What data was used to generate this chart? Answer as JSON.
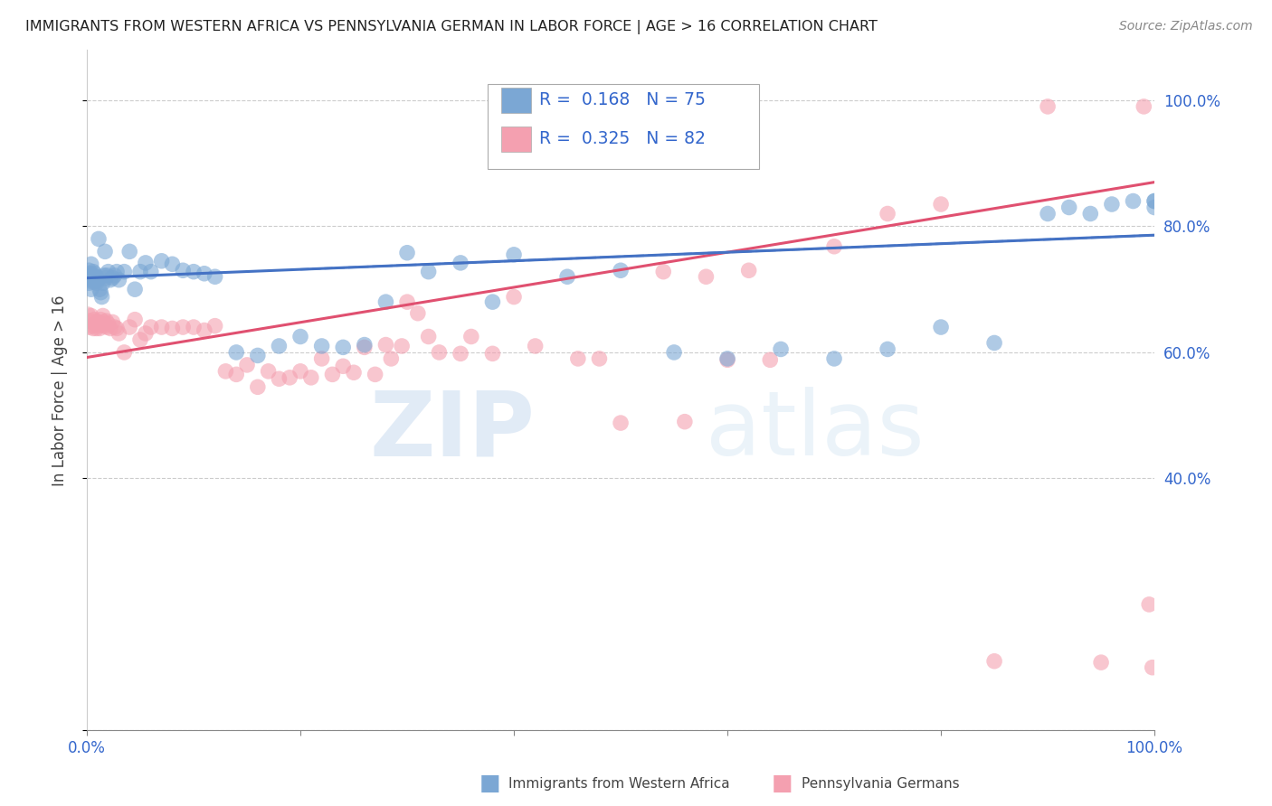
{
  "title": "IMMIGRANTS FROM WESTERN AFRICA VS PENNSYLVANIA GERMAN IN LABOR FORCE | AGE > 16 CORRELATION CHART",
  "source": "Source: ZipAtlas.com",
  "ylabel": "In Labor Force | Age > 16",
  "blue_color": "#7BA7D4",
  "pink_color": "#F4A0B0",
  "blue_line_color": "#4472C4",
  "pink_line_color": "#E05070",
  "blue_R": 0.168,
  "blue_N": 75,
  "pink_R": 0.325,
  "pink_N": 82,
  "blue_trend_intercept": 0.718,
  "blue_trend_slope": 0.068,
  "pink_trend_intercept": 0.592,
  "pink_trend_slope": 0.278,
  "xlim": [
    0.0,
    1.0
  ],
  "ylim": [
    0.0,
    1.08
  ],
  "yticks": [
    0.0,
    0.4,
    0.6,
    0.8,
    1.0
  ],
  "ytick_labels_right": [
    "",
    "40.0%",
    "60.0%",
    "80.0%",
    "100.0%"
  ],
  "xtick_labels": [
    "0.0%",
    "",
    "",
    "",
    "",
    "100.0%"
  ],
  "xticks": [
    0.0,
    0.2,
    0.4,
    0.6,
    0.8,
    1.0
  ],
  "watermark": "ZIPatlas",
  "legend_label1": "R =  0.168   N = 75",
  "legend_label2": "R =  0.325   N = 82",
  "blue_x": [
    0.001,
    0.002,
    0.002,
    0.003,
    0.003,
    0.004,
    0.004,
    0.005,
    0.005,
    0.006,
    0.006,
    0.007,
    0.007,
    0.008,
    0.008,
    0.009,
    0.009,
    0.01,
    0.011,
    0.012,
    0.013,
    0.014,
    0.015,
    0.016,
    0.017,
    0.018,
    0.019,
    0.02,
    0.022,
    0.024,
    0.026,
    0.028,
    0.03,
    0.035,
    0.04,
    0.045,
    0.05,
    0.055,
    0.06,
    0.07,
    0.08,
    0.09,
    0.1,
    0.11,
    0.12,
    0.14,
    0.16,
    0.18,
    0.2,
    0.22,
    0.24,
    0.26,
    0.28,
    0.3,
    0.32,
    0.35,
    0.38,
    0.4,
    0.45,
    0.5,
    0.55,
    0.6,
    0.65,
    0.7,
    0.75,
    0.8,
    0.85,
    0.9,
    0.92,
    0.94,
    0.96,
    0.98,
    1.0,
    1.0,
    1.0
  ],
  "blue_y": [
    0.72,
    0.73,
    0.71,
    0.715,
    0.725,
    0.7,
    0.74,
    0.718,
    0.712,
    0.722,
    0.728,
    0.715,
    0.725,
    0.718,
    0.712,
    0.71,
    0.72,
    0.715,
    0.78,
    0.7,
    0.695,
    0.688,
    0.71,
    0.722,
    0.76,
    0.718,
    0.722,
    0.728,
    0.715,
    0.718,
    0.722,
    0.728,
    0.715,
    0.728,
    0.76,
    0.7,
    0.728,
    0.742,
    0.728,
    0.745,
    0.74,
    0.73,
    0.728,
    0.725,
    0.72,
    0.6,
    0.595,
    0.61,
    0.625,
    0.61,
    0.608,
    0.612,
    0.68,
    0.758,
    0.728,
    0.742,
    0.68,
    0.755,
    0.72,
    0.73,
    0.6,
    0.59,
    0.605,
    0.59,
    0.605,
    0.64,
    0.615,
    0.82,
    0.83,
    0.82,
    0.835,
    0.84,
    0.83,
    0.84,
    0.84
  ],
  "pink_x": [
    0.001,
    0.002,
    0.003,
    0.004,
    0.005,
    0.006,
    0.007,
    0.008,
    0.009,
    0.01,
    0.011,
    0.012,
    0.013,
    0.014,
    0.015,
    0.016,
    0.017,
    0.018,
    0.019,
    0.02,
    0.022,
    0.024,
    0.026,
    0.028,
    0.03,
    0.035,
    0.04,
    0.045,
    0.05,
    0.055,
    0.06,
    0.07,
    0.08,
    0.09,
    0.1,
    0.11,
    0.12,
    0.13,
    0.14,
    0.15,
    0.16,
    0.17,
    0.18,
    0.19,
    0.2,
    0.21,
    0.22,
    0.23,
    0.24,
    0.25,
    0.26,
    0.27,
    0.28,
    0.285,
    0.295,
    0.3,
    0.31,
    0.32,
    0.33,
    0.35,
    0.36,
    0.38,
    0.4,
    0.42,
    0.46,
    0.48,
    0.5,
    0.54,
    0.56,
    0.58,
    0.6,
    0.62,
    0.64,
    0.7,
    0.75,
    0.8,
    0.85,
    0.9,
    0.95,
    0.99,
    0.995,
    0.998
  ],
  "pink_y": [
    0.66,
    0.64,
    0.65,
    0.658,
    0.642,
    0.638,
    0.652,
    0.645,
    0.638,
    0.648,
    0.642,
    0.638,
    0.652,
    0.645,
    0.658,
    0.648,
    0.642,
    0.65,
    0.64,
    0.645,
    0.638,
    0.648,
    0.64,
    0.638,
    0.63,
    0.6,
    0.64,
    0.652,
    0.62,
    0.63,
    0.64,
    0.64,
    0.638,
    0.64,
    0.64,
    0.635,
    0.642,
    0.57,
    0.565,
    0.58,
    0.545,
    0.57,
    0.558,
    0.56,
    0.57,
    0.56,
    0.59,
    0.565,
    0.578,
    0.568,
    0.608,
    0.565,
    0.612,
    0.59,
    0.61,
    0.68,
    0.662,
    0.625,
    0.6,
    0.598,
    0.625,
    0.598,
    0.688,
    0.61,
    0.59,
    0.59,
    0.488,
    0.728,
    0.49,
    0.72,
    0.588,
    0.73,
    0.588,
    0.768,
    0.82,
    0.835,
    0.11,
    0.99,
    0.108,
    0.99,
    0.2,
    0.1
  ]
}
